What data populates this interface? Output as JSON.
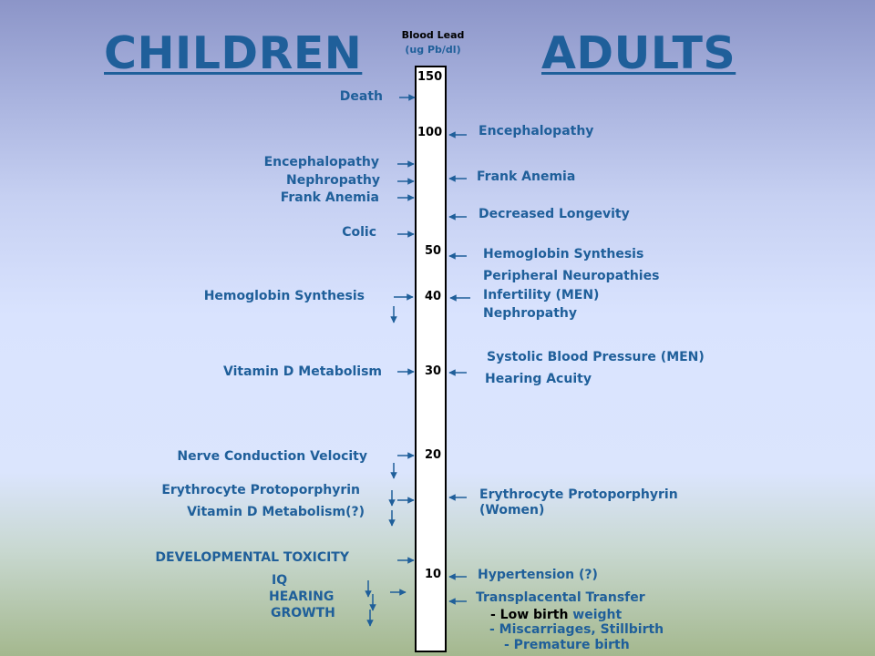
{
  "titles": {
    "children": "CHILDREN",
    "adults": "ADULTS"
  },
  "scale": {
    "title": "Blood Lead",
    "unit": "(ug Pb/dl)",
    "ticks": [
      "150",
      "100",
      "50",
      "40",
      "30",
      "20",
      "10"
    ]
  },
  "children": [
    "Death",
    "Encephalopathy",
    "Nephropathy",
    "Frank Anemia",
    "Colic",
    "Hemoglobin Synthesis",
    "Vitamin D Metabolism",
    "Nerve Conduction Velocity",
    "Erythrocyte Protoporphyrin",
    "Vitamin D Metabolism(?)",
    "DEVELOPMENTAL TOXICITY",
    "IQ",
    "HEARING",
    "GROWTH"
  ],
  "adults": [
    "Encephalopathy",
    "Frank Anemia",
    "Decreased Longevity",
    "Hemoglobin Synthesis",
    "Peripheral Neuropathies",
    "Infertility (MEN)",
    "Nephropathy",
    "Systolic Blood Pressure (MEN)",
    "Hearing Acuity",
    "Erythrocyte Protoporphyrin",
    "(Women)",
    "Hypertension (?)",
    "Transplacental Transfer",
    "- Low birth",
    "weight",
    "- Miscarriages, Stillbirth",
    "- Premature birth"
  ],
  "colors": {
    "label": "#1f5f9a",
    "arrow": "#1f5f9a",
    "scale_border": "#000000"
  }
}
